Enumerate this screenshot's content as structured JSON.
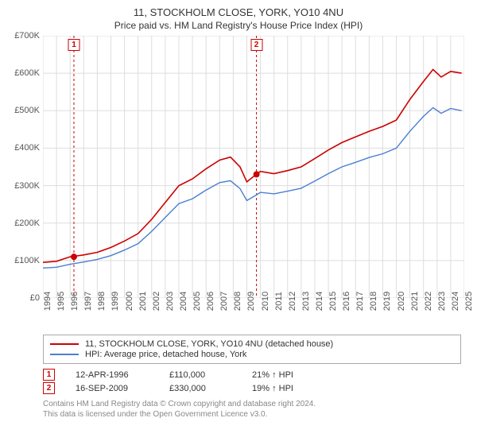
{
  "title": "11, STOCKHOLM CLOSE, YORK, YO10 4NU",
  "subtitle": "Price paid vs. HM Land Registry's House Price Index (HPI)",
  "chart": {
    "type": "line",
    "background_color": "#ffffff",
    "plot_border_color": "#cccccc",
    "grid_color": "#dddddd",
    "font_size_axis": 11,
    "axis_color": "#555555",
    "x": {
      "min": 1994,
      "max": 2025,
      "ticks": [
        1994,
        1995,
        1996,
        1997,
        1998,
        1999,
        2000,
        2001,
        2002,
        2003,
        2004,
        2005,
        2006,
        2007,
        2008,
        2009,
        2010,
        2011,
        2012,
        2013,
        2014,
        2015,
        2016,
        2017,
        2018,
        2019,
        2020,
        2021,
        2022,
        2023,
        2024,
        2025
      ]
    },
    "y": {
      "min": 0,
      "max": 700000,
      "step": 100000,
      "prefix": "£",
      "suffix_k": "K",
      "ticks": [
        0,
        100000,
        200000,
        300000,
        400000,
        500000,
        600000,
        700000
      ]
    },
    "series": [
      {
        "name": "11, STOCKHOLM CLOSE, YORK, YO10 4NU (detached house)",
        "color": "#cc0000",
        "line_width": 1.6,
        "points": [
          [
            1994,
            95000
          ],
          [
            1995,
            98000
          ],
          [
            1996,
            110000
          ],
          [
            1997,
            115000
          ],
          [
            1998,
            122000
          ],
          [
            1999,
            135000
          ],
          [
            2000,
            152000
          ],
          [
            2001,
            172000
          ],
          [
            2002,
            210000
          ],
          [
            2003,
            255000
          ],
          [
            2004,
            300000
          ],
          [
            2005,
            318000
          ],
          [
            2006,
            345000
          ],
          [
            2007,
            368000
          ],
          [
            2007.8,
            376000
          ],
          [
            2008.5,
            350000
          ],
          [
            2009,
            310000
          ],
          [
            2009.7,
            330000
          ],
          [
            2010,
            338000
          ],
          [
            2011,
            332000
          ],
          [
            2012,
            340000
          ],
          [
            2013,
            350000
          ],
          [
            2014,
            372000
          ],
          [
            2015,
            395000
          ],
          [
            2016,
            415000
          ],
          [
            2017,
            430000
          ],
          [
            2018,
            445000
          ],
          [
            2019,
            458000
          ],
          [
            2020,
            475000
          ],
          [
            2021,
            530000
          ],
          [
            2022,
            578000
          ],
          [
            2022.7,
            610000
          ],
          [
            2023.3,
            590000
          ],
          [
            2024,
            605000
          ],
          [
            2024.8,
            600000
          ]
        ]
      },
      {
        "name": "HPI: Average price, detached house, York",
        "color": "#4a7fd1",
        "line_width": 1.4,
        "points": [
          [
            1994,
            80000
          ],
          [
            1995,
            82000
          ],
          [
            1996,
            90000
          ],
          [
            1997,
            96000
          ],
          [
            1998,
            103000
          ],
          [
            1999,
            113000
          ],
          [
            2000,
            128000
          ],
          [
            2001,
            145000
          ],
          [
            2002,
            178000
          ],
          [
            2003,
            215000
          ],
          [
            2004,
            252000
          ],
          [
            2005,
            265000
          ],
          [
            2006,
            288000
          ],
          [
            2007,
            308000
          ],
          [
            2007.8,
            313000
          ],
          [
            2008.5,
            292000
          ],
          [
            2009,
            260000
          ],
          [
            2009.7,
            275000
          ],
          [
            2010,
            282000
          ],
          [
            2011,
            278000
          ],
          [
            2012,
            285000
          ],
          [
            2013,
            293000
          ],
          [
            2014,
            312000
          ],
          [
            2015,
            332000
          ],
          [
            2016,
            350000
          ],
          [
            2017,
            362000
          ],
          [
            2018,
            375000
          ],
          [
            2019,
            385000
          ],
          [
            2020,
            400000
          ],
          [
            2021,
            445000
          ],
          [
            2022,
            485000
          ],
          [
            2022.7,
            508000
          ],
          [
            2023.3,
            493000
          ],
          [
            2024,
            506000
          ],
          [
            2024.8,
            500000
          ]
        ]
      }
    ],
    "vlines": [
      {
        "x": 1996.28,
        "color": "#cc0000",
        "dash": "3,3",
        "label": "1"
      },
      {
        "x": 2009.71,
        "color": "#cc0000",
        "dash": "3,3",
        "label": "2"
      }
    ],
    "markers": [
      {
        "x": 1996.28,
        "y": 110000,
        "color": "#cc0000",
        "radius": 4
      },
      {
        "x": 2009.71,
        "y": 330000,
        "color": "#cc0000",
        "radius": 4
      }
    ]
  },
  "legend": {
    "row1": "11, STOCKHOLM CLOSE, YORK, YO10 4NU (detached house)",
    "row2": "HPI: Average price, detached house, York"
  },
  "events": [
    {
      "n": "1",
      "date": "12-APR-1996",
      "price": "£110,000",
      "pct": "21% ↑ HPI"
    },
    {
      "n": "2",
      "date": "16-SEP-2009",
      "price": "£330,000",
      "pct": "19% ↑ HPI"
    }
  ],
  "footer_line1": "Contains HM Land Registry data © Crown copyright and database right 2024.",
  "footer_line2": "This data is licensed under the Open Government Licence v3.0."
}
